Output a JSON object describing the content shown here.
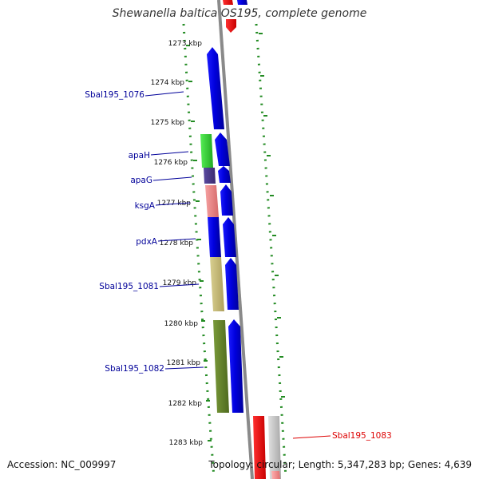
{
  "title": "Shewanella baltica OS195, complete genome",
  "footer": {
    "accession": "Accession: NC_009997",
    "topology": "Topology: circular; Length: 5,347,283 bp; Genes: 4,639"
  },
  "colors": {
    "forward_gene": "#0000ee",
    "reverse_gene": "#ee0000",
    "reverse_label": "#dd0000",
    "tick": "#228b22",
    "backbone": "#888888",
    "label": "#000099"
  },
  "ticks": [
    {
      "label": "1273 kbp"
    },
    {
      "label": "1274 kbp"
    },
    {
      "label": "1275 kbp"
    },
    {
      "label": "1276 kbp"
    },
    {
      "label": "1277 kbp"
    },
    {
      "label": "1278 kbp"
    },
    {
      "label": "1279 kbp"
    },
    {
      "label": "1280 kbp"
    },
    {
      "label": "1281 kbp"
    },
    {
      "label": "1282 kbp"
    },
    {
      "label": "1283 kbp"
    }
  ],
  "gene_labels": [
    {
      "name": "Sbal195_1076"
    },
    {
      "name": "apaH"
    },
    {
      "name": "apaG"
    },
    {
      "name": "ksgA"
    },
    {
      "name": "pdxA"
    },
    {
      "name": "Sbal195_1081"
    },
    {
      "name": "Sbal195_1082"
    },
    {
      "name": "Sbal195_1083"
    }
  ]
}
